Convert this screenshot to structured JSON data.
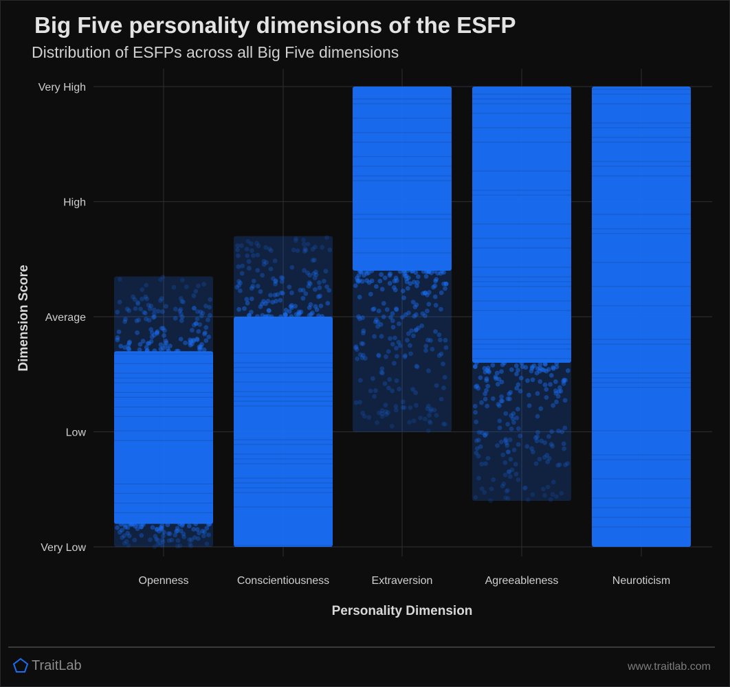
{
  "title": "Big Five personality dimensions of the ESFP",
  "subtitle": "Distribution of ESFPs across all Big Five dimensions",
  "footer": {
    "brand": "TraitLab",
    "url": "www.traitlab.com"
  },
  "colors": {
    "background": "#0d0d0e",
    "point": "#1a6ef5",
    "grid": "#2b2b2d"
  },
  "chart_data": {
    "type": "scatter",
    "style": "jittered strip plot (one band of points per dimension)",
    "xlabel": "Personality Dimension",
    "ylabel": "Dimension Score",
    "categories": [
      "Openness",
      "Conscientiousness",
      "Extraversion",
      "Agreeableness",
      "Neuroticism"
    ],
    "y_levels": [
      "Very Low",
      "Low",
      "Average",
      "High",
      "Very High"
    ],
    "ylim": [
      0,
      4
    ],
    "grid": true,
    "legend": "none",
    "distributions": [
      {
        "category": "Openness",
        "min": 0.0,
        "max": 2.35,
        "dense_min": 0.2,
        "dense_max": 1.7
      },
      {
        "category": "Conscientiousness",
        "min": 0.0,
        "max": 2.7,
        "dense_min": 0.0,
        "dense_max": 2.0
      },
      {
        "category": "Extraversion",
        "min": 1.0,
        "max": 4.0,
        "dense_min": 2.4,
        "dense_max": 4.0
      },
      {
        "category": "Agreeableness",
        "min": 0.4,
        "max": 4.0,
        "dense_min": 1.6,
        "dense_max": 4.0
      },
      {
        "category": "Neuroticism",
        "min": 0.0,
        "max": 4.0,
        "dense_min": 0.0,
        "dense_max": 4.0
      }
    ]
  }
}
